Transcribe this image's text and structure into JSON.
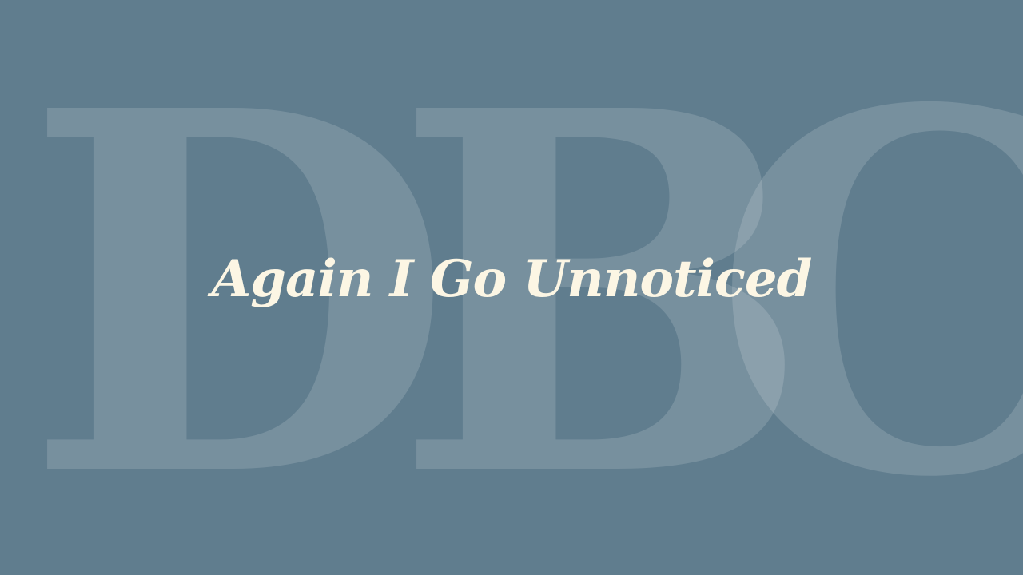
{
  "watermark": {
    "letters": [
      "D",
      "B",
      "C"
    ]
  },
  "title": "Again I Go Unnoticed",
  "colors": {
    "background": "#607d8e",
    "title": "#fcf6e4",
    "watermark": "rgba(255,255,255,0.15)"
  }
}
